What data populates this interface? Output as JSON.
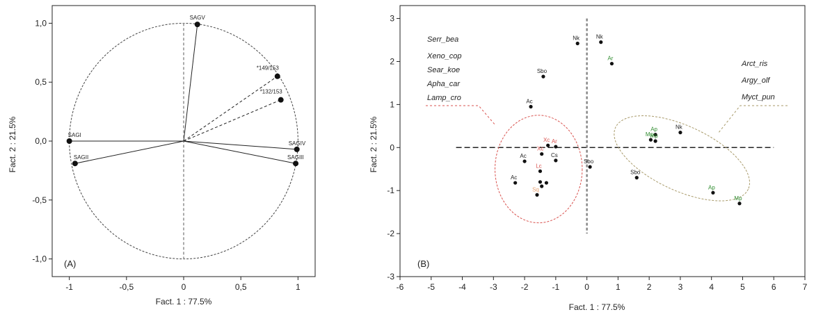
{
  "chart_data": [
    {
      "type": "scatter",
      "panel_label": "(A)",
      "xlabel": "Fact. 1  : 77.5%",
      "ylabel": "Fact. 2  : 21.5%",
      "xlim": [
        -1.15,
        1.15
      ],
      "ylim": [
        -1.15,
        1.15
      ],
      "xticks": [
        -1,
        -0.5,
        0,
        0.5,
        1
      ],
      "yticks": [
        -1.0,
        -0.5,
        0.0,
        0.5,
        1.0
      ],
      "xtick_labels": [
        "-1",
        "-0,5",
        "0",
        "0,5",
        "1"
      ],
      "ytick_labels": [
        "-1,0",
        "-0,5",
        "0,0",
        "0,5",
        "1,0"
      ],
      "unit_circle": true,
      "zero_line": {
        "x": 0,
        "from": -1.0,
        "to": 1.0
      },
      "vectors": [
        {
          "label": "SAGV",
          "x": 0.12,
          "y": 0.99,
          "style": "solid"
        },
        {
          "label": "SAGI",
          "x": -1.0,
          "y": 0.0,
          "style": "solid"
        },
        {
          "label": "SAGII",
          "x": -0.95,
          "y": -0.19,
          "style": "solid"
        },
        {
          "label": "SAGIV",
          "x": 0.99,
          "y": -0.07,
          "style": "solid"
        },
        {
          "label": "SAGIII",
          "x": 0.98,
          "y": -0.19,
          "style": "solid"
        },
        {
          "label": "*149/153",
          "x": 0.82,
          "y": 0.55,
          "style": "dashed"
        },
        {
          "label": "*132/153",
          "x": 0.85,
          "y": 0.35,
          "style": "dashed"
        }
      ]
    },
    {
      "type": "scatter",
      "panel_label": "(B)",
      "xlabel": "Fact. 1  : 77.5%",
      "ylabel": "Fact. 2  : 21.5%",
      "xlim": [
        -6,
        7
      ],
      "ylim": [
        -3,
        3.3
      ],
      "xticks": [
        -6,
        -5,
        -4,
        -3,
        -2,
        -1,
        0,
        1,
        2,
        3,
        4,
        5,
        6,
        7
      ],
      "yticks": [
        -3,
        -2,
        -1,
        0,
        1,
        2,
        3
      ],
      "guide_lines": {
        "horizontal": {
          "y": 0,
          "from": -4.2,
          "to": 6.0
        },
        "vertical": {
          "x": 0,
          "from": -2.0,
          "to": 3.0
        }
      },
      "groups": [
        {
          "name": "Serr_bea / Xeno_cop / Sear_koe / Apha_car / Lamp_cro",
          "labels": [
            "Serr_bea",
            "Xeno_cop",
            "Sear_koe",
            "Apha_car",
            "Lamp_cro"
          ],
          "color": "#d9534f"
        },
        {
          "name": "Arct_ris / Argy_olf / Myct_pun",
          "labels": [
            "Arct_ris",
            "Argy_olf",
            "Myct_pun"
          ],
          "color": "#a89a6a"
        }
      ],
      "ellipses": [
        {
          "cx": -1.55,
          "cy": -0.5,
          "rx": 1.4,
          "ry": 1.25,
          "angle": 0,
          "color": "#d9534f"
        },
        {
          "cx": 3.05,
          "cy": -0.25,
          "rx": 2.35,
          "ry": 0.75,
          "angle": -25,
          "color": "#a89a6a"
        }
      ],
      "points": [
        {
          "label": "Nk",
          "x": -0.3,
          "y": 2.42,
          "color": "#222222"
        },
        {
          "label": "Nk",
          "x": 0.45,
          "y": 2.45,
          "color": "#222222"
        },
        {
          "label": "Ar",
          "x": 0.8,
          "y": 1.95,
          "color": "#2e8b2e"
        },
        {
          "label": "Sbo",
          "x": -1.4,
          "y": 1.65,
          "color": "#222222"
        },
        {
          "label": "Ac",
          "x": -1.8,
          "y": 0.95,
          "color": "#222222"
        },
        {
          "label": "Nk",
          "x": 3.0,
          "y": 0.35,
          "color": "#222222"
        },
        {
          "label": "Ap",
          "x": 2.2,
          "y": 0.3,
          "color": "#2e8b2e"
        },
        {
          "label": "Mp",
          "x": 2.05,
          "y": 0.18,
          "color": "#2e8b2e"
        },
        {
          "label": "Mp",
          "x": 2.2,
          "y": 0.15,
          "color": "#2e8b2e"
        },
        {
          "label": "Xc",
          "x": -1.25,
          "y": 0.05,
          "color": "#d9534f"
        },
        {
          "label": "Ar",
          "x": -1.0,
          "y": 0.02,
          "color": "#d9534f"
        },
        {
          "label": "Xc",
          "x": -1.45,
          "y": -0.15,
          "color": "#d9534f"
        },
        {
          "label": "Cs",
          "x": -1.0,
          "y": -0.3,
          "color": "#222222"
        },
        {
          "label": "Ac",
          "x": -2.0,
          "y": -0.32,
          "color": "#222222"
        },
        {
          "label": "Lc",
          "x": -1.5,
          "y": -0.55,
          "color": "#d9534f"
        },
        {
          "label": "Ac",
          "x": -2.3,
          "y": -0.82,
          "color": "#222222"
        },
        {
          "label": "Sbo",
          "x": 0.1,
          "y": -0.45,
          "color": "#222222"
        },
        {
          "label": "Sbo",
          "x": 1.6,
          "y": -0.7,
          "color": "#222222"
        },
        {
          "label": "",
          "x": -1.5,
          "y": -0.8,
          "color": "#222222"
        },
        {
          "label": "",
          "x": -1.3,
          "y": -0.82,
          "color": "#222222"
        },
        {
          "label": "",
          "x": -1.45,
          "y": -0.9,
          "color": "#222222"
        },
        {
          "label": "Sq",
          "x": -1.6,
          "y": -1.1,
          "color": "#e8a070"
        },
        {
          "label": "Ap",
          "x": 4.05,
          "y": -1.05,
          "color": "#2e8b2e"
        },
        {
          "label": "Mp",
          "x": 4.9,
          "y": -1.3,
          "color": "#2e8b2e"
        }
      ]
    }
  ]
}
